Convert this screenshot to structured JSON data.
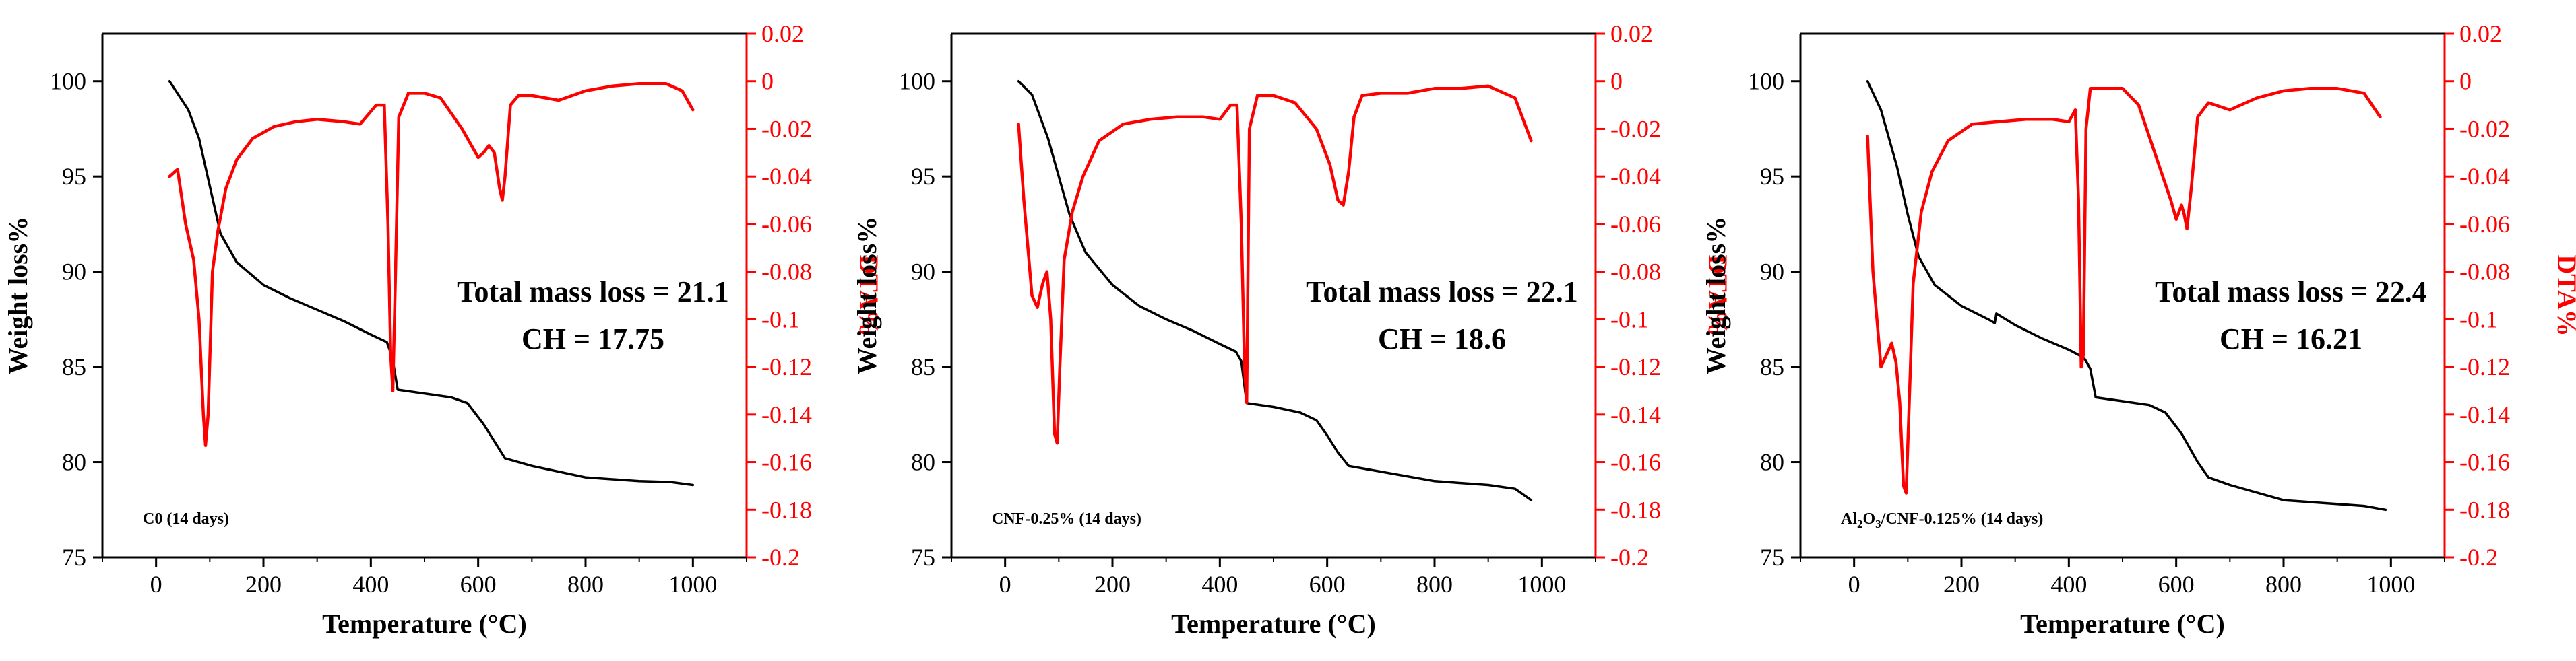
{
  "colors": {
    "weight": "#000000",
    "dta": "#ff0000",
    "axis": "#000000"
  },
  "chart_data": [
    {
      "type": "line",
      "xlabel": "Temperature (°C)",
      "ylabel": "Weight loss%",
      "y2label": "DTA%",
      "xlim": [
        -100,
        1100
      ],
      "ylim": [
        75,
        102.5
      ],
      "y2lim": [
        -0.2,
        0.02
      ],
      "xticks": [
        "0",
        "200",
        "400",
        "600",
        "800",
        "1000"
      ],
      "yticks": [
        "75",
        "80",
        "85",
        "90",
        "95",
        "100"
      ],
      "y2ticks": [
        "0.02",
        "0",
        "-0.02",
        "-0.04",
        "-0.06",
        "-0.08",
        "-0.1",
        "-0.12",
        "-0.14",
        "-0.16",
        "-0.18",
        "-0.2"
      ],
      "annotation_line1": "Total mass loss = 21.1",
      "annotation_line2": "CH = 17.75",
      "sample_label_parts": [
        "C0 (14 days)"
      ],
      "series": [
        {
          "name": "Weight loss%",
          "axis": "left",
          "x": [
            25,
            60,
            80,
            100,
            120,
            150,
            200,
            250,
            300,
            350,
            400,
            430,
            440,
            450,
            500,
            550,
            580,
            610,
            630,
            650,
            700,
            800,
            900,
            960,
            1000
          ],
          "y": [
            100.0,
            98.5,
            97.0,
            94.5,
            92.0,
            90.5,
            89.3,
            88.6,
            88.0,
            87.4,
            86.7,
            86.3,
            85.5,
            83.8,
            83.6,
            83.4,
            83.1,
            82.0,
            81.1,
            80.2,
            79.8,
            79.2,
            79.0,
            78.95,
            78.8
          ]
        },
        {
          "name": "DTA%",
          "axis": "right",
          "x": [
            25,
            40,
            55,
            70,
            80,
            88,
            92,
            97,
            105,
            115,
            130,
            150,
            180,
            220,
            260,
            300,
            350,
            380,
            410,
            425,
            432,
            437,
            441,
            446,
            452,
            470,
            500,
            530,
            570,
            600,
            610,
            620,
            630,
            640,
            645,
            650,
            660,
            675,
            700,
            750,
            800,
            850,
            900,
            950,
            980,
            1000
          ],
          "y": [
            -0.04,
            -0.037,
            -0.06,
            -0.075,
            -0.1,
            -0.14,
            -0.153,
            -0.14,
            -0.08,
            -0.063,
            -0.045,
            -0.033,
            -0.024,
            -0.019,
            -0.017,
            -0.016,
            -0.017,
            -0.018,
            -0.01,
            -0.01,
            -0.06,
            -0.115,
            -0.13,
            -0.08,
            -0.015,
            -0.005,
            -0.005,
            -0.007,
            -0.02,
            -0.032,
            -0.03,
            -0.027,
            -0.03,
            -0.045,
            -0.05,
            -0.04,
            -0.01,
            -0.006,
            -0.006,
            -0.008,
            -0.004,
            -0.002,
            -0.001,
            -0.001,
            -0.004,
            -0.012
          ]
        }
      ]
    },
    {
      "type": "line",
      "xlabel": "Temperature (°C)",
      "ylabel": "Weight loss%",
      "y2label": "DTA%",
      "xlim": [
        -100,
        1100
      ],
      "ylim": [
        75,
        102.5
      ],
      "y2lim": [
        -0.2,
        0.02
      ],
      "xticks": [
        "0",
        "200",
        "400",
        "600",
        "800",
        "1000"
      ],
      "yticks": [
        "75",
        "80",
        "85",
        "90",
        "95",
        "100"
      ],
      "y2ticks": [
        "0.02",
        "0",
        "-0.02",
        "-0.04",
        "-0.06",
        "-0.08",
        "-0.1",
        "-0.12",
        "-0.14",
        "-0.16",
        "-0.18",
        "-0.2"
      ],
      "annotation_line1": "Total mass loss = 22.1",
      "annotation_line2": "CH = 18.6",
      "sample_label_parts": [
        "CNF-0.25% (14 days)"
      ],
      "series": [
        {
          "name": "Weight loss%",
          "axis": "left",
          "x": [
            25,
            50,
            80,
            100,
            120,
            150,
            200,
            250,
            300,
            350,
            400,
            430,
            440,
            450,
            500,
            550,
            580,
            600,
            620,
            640,
            700,
            800,
            900,
            950,
            980
          ],
          "y": [
            100.0,
            99.3,
            97.0,
            95.0,
            93.0,
            91.0,
            89.3,
            88.2,
            87.5,
            86.9,
            86.2,
            85.8,
            85.3,
            83.1,
            82.9,
            82.6,
            82.2,
            81.4,
            80.5,
            79.8,
            79.5,
            79.0,
            78.8,
            78.6,
            78.0
          ]
        },
        {
          "name": "DTA%",
          "axis": "right",
          "x": [
            25,
            35,
            50,
            60,
            70,
            78,
            85,
            92,
            97,
            102,
            110,
            125,
            145,
            175,
            220,
            270,
            320,
            370,
            400,
            420,
            432,
            440,
            446,
            450,
            455,
            470,
            500,
            540,
            580,
            605,
            620,
            630,
            640,
            650,
            665,
            700,
            750,
            800,
            850,
            900,
            950,
            980
          ],
          "y": [
            -0.018,
            -0.05,
            -0.09,
            -0.095,
            -0.085,
            -0.08,
            -0.1,
            -0.148,
            -0.152,
            -0.12,
            -0.075,
            -0.055,
            -0.04,
            -0.025,
            -0.018,
            -0.016,
            -0.015,
            -0.015,
            -0.016,
            -0.01,
            -0.01,
            -0.06,
            -0.12,
            -0.135,
            -0.02,
            -0.006,
            -0.006,
            -0.009,
            -0.02,
            -0.035,
            -0.05,
            -0.052,
            -0.038,
            -0.015,
            -0.006,
            -0.005,
            -0.005,
            -0.003,
            -0.003,
            -0.002,
            -0.007,
            -0.025
          ]
        }
      ]
    },
    {
      "type": "line",
      "xlabel": "Temperature (°C)",
      "ylabel": "Weight loss%",
      "y2label": "DTA%",
      "xlim": [
        -100,
        1100
      ],
      "ylim": [
        75,
        102.5
      ],
      "y2lim": [
        -0.2,
        0.02
      ],
      "xticks": [
        "0",
        "200",
        "400",
        "600",
        "800",
        "1000"
      ],
      "yticks": [
        "75",
        "80",
        "85",
        "90",
        "95",
        "100"
      ],
      "y2ticks": [
        "0.02",
        "0",
        "-0.02",
        "-0.04",
        "-0.06",
        "-0.08",
        "-0.1",
        "-0.12",
        "-0.14",
        "-0.16",
        "-0.18",
        "-0.2"
      ],
      "annotation_line1": "Total mass loss = 22.4",
      "annotation_line2": "CH = 16.21",
      "sample_label_parts": [
        "Al",
        "2",
        "O",
        "3",
        "/CNF-0.125% (14 days)"
      ],
      "series": [
        {
          "name": "Weight loss%",
          "axis": "left",
          "x": [
            25,
            50,
            80,
            100,
            120,
            150,
            200,
            250,
            262,
            265,
            300,
            350,
            400,
            420,
            430,
            440,
            450,
            500,
            550,
            580,
            610,
            640,
            660,
            700,
            800,
            900,
            950,
            990
          ],
          "y": [
            100.0,
            98.5,
            95.5,
            93.0,
            90.8,
            89.3,
            88.2,
            87.5,
            87.3,
            87.8,
            87.2,
            86.5,
            85.9,
            85.6,
            85.4,
            84.9,
            83.4,
            83.2,
            83.0,
            82.6,
            81.5,
            80.0,
            79.2,
            78.8,
            78.0,
            77.8,
            77.7,
            77.5
          ]
        },
        {
          "name": "DTA%",
          "axis": "right",
          "x": [
            25,
            35,
            50,
            60,
            70,
            78,
            85,
            92,
            97,
            102,
            110,
            125,
            145,
            175,
            220,
            270,
            320,
            370,
            400,
            412,
            418,
            423,
            427,
            432,
            440,
            460,
            500,
            530,
            560,
            590,
            600,
            610,
            615,
            620,
            628,
            640,
            660,
            700,
            750,
            800,
            850,
            900,
            950,
            980
          ],
          "y": [
            -0.023,
            -0.08,
            -0.12,
            -0.115,
            -0.11,
            -0.118,
            -0.135,
            -0.17,
            -0.173,
            -0.14,
            -0.085,
            -0.055,
            -0.038,
            -0.025,
            -0.018,
            -0.017,
            -0.016,
            -0.016,
            -0.017,
            -0.012,
            -0.05,
            -0.12,
            -0.115,
            -0.02,
            -0.003,
            -0.003,
            -0.003,
            -0.01,
            -0.03,
            -0.05,
            -0.058,
            -0.052,
            -0.056,
            -0.062,
            -0.045,
            -0.015,
            -0.009,
            -0.012,
            -0.007,
            -0.004,
            -0.003,
            -0.003,
            -0.005,
            -0.015
          ]
        }
      ]
    }
  ]
}
